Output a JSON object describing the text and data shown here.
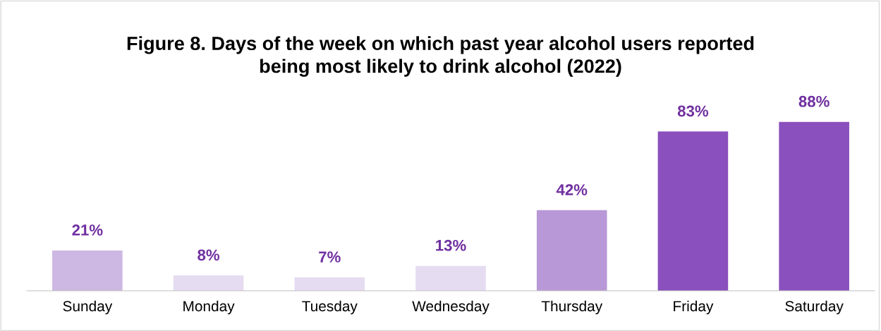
{
  "chart_data": {
    "type": "bar",
    "title": "Figure 8. Days of the week on which past year alcohol users reported\nbeing most likely to drink alcohol (2022)",
    "categories": [
      "Sunday",
      "Monday",
      "Tuesday",
      "Wednesday",
      "Thursday",
      "Friday",
      "Saturday"
    ],
    "values": [
      21,
      8,
      7,
      13,
      42,
      83,
      88
    ],
    "colors": [
      "#cdb7e3",
      "#e6dcf1",
      "#e6dcf1",
      "#e6dcf1",
      "#b898d7",
      "#8a50bd",
      "#8a50bd"
    ],
    "value_labels": [
      "21%",
      "8%",
      "7%",
      "13%",
      "42%",
      "83%",
      "88%"
    ],
    "grid": false,
    "legend": false
  }
}
